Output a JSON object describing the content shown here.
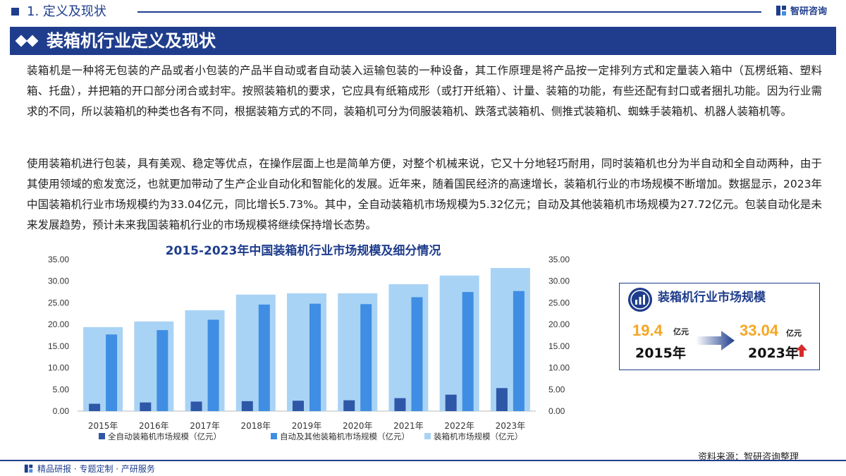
{
  "top": {
    "section_title": "1. 定义及现状",
    "brand": "智研咨询"
  },
  "header": {
    "title": "装箱机行业定义及现状"
  },
  "paragraphs": [
    "装箱机是一种将无包装的产品或者小包装的产品半自动或者自动装入运输包装的一种设备，其工作原理是将产品按一定排列方式和定量装入箱中（瓦楞纸箱、塑料箱、托盘），并把箱的开口部分闭合或封牢。按照装箱机的要求，它应具有纸箱成形（或打开纸箱）、计量、装箱的功能，有些还配有封口或者捆扎功能。因为行业需求的不同，所以装箱机的种类也各有不同，根据装箱方式的不同，装箱机可分为伺服装箱机、跌落式装箱机、侧推式装箱机、蜘蛛手装箱机、机器人装箱机等。",
    "使用装箱机进行包装，具有美观、稳定等优点，在操作层面上也是简单方便，对整个机械来说，它又十分地轻巧耐用，同时装箱机也分为半自动和全自动两种，由于其使用领域的愈发宽泛，也就更加带动了生产企业自动化和智能化的发展。近年来，随着国民经济的高速增长，装箱机行业的市场规模不断增加。数据显示，2023年中国装箱机行业市场规模约为33.04亿元，同比增长5.73%。其中，全自动装箱机市场规模为5.32亿元；自动及其他装箱机市场规模为27.72亿元。包装自动化是未来发展趋势，预计未来我国装箱机行业的市场规模将继续保持增长态势。"
  ],
  "chart_data": {
    "type": "bar",
    "title": "2015-2023年中国装箱机行业市场规模及细分情况",
    "categories": [
      "2015年",
      "2016年",
      "2017年",
      "2018年",
      "2019年",
      "2020年",
      "2021年",
      "2022年",
      "2023年"
    ],
    "series": [
      {
        "name": "全自动装箱机市场规模（亿元）",
        "values": [
          1.7,
          2.0,
          2.2,
          2.3,
          2.4,
          2.5,
          3.0,
          3.8,
          5.32
        ],
        "color": "#2e57a8"
      },
      {
        "name": "自动及其他装箱机市场规模（亿元）",
        "values": [
          17.7,
          18.7,
          21.1,
          24.6,
          24.8,
          24.7,
          26.3,
          27.5,
          27.72
        ],
        "color": "#3f8ee3"
      },
      {
        "name": "装箱机市场规模（亿元）",
        "values": [
          19.4,
          20.7,
          23.3,
          26.9,
          27.2,
          27.2,
          29.3,
          31.3,
          33.04
        ],
        "color": "#a9d3f5"
      }
    ],
    "yticks": [
      "0.00",
      "5.00",
      "10.00",
      "15.00",
      "20.00",
      "25.00",
      "30.00",
      "35.00"
    ],
    "ylim": [
      0,
      35
    ],
    "dual_axis": true,
    "legend_position": "bottom"
  },
  "callout": {
    "title": "装箱机行业市场规模",
    "start_value": "19.4",
    "start_unit": "亿元",
    "start_year": "2015年",
    "end_value": "33.04",
    "end_unit": "亿元",
    "end_year": "2023年",
    "colors": {
      "value": "#f5a623",
      "up_arrow": "#d62b2b"
    },
    "icons": [
      "bar-chart-icon",
      "right-arrow-icon",
      "up-arrow-icon"
    ]
  },
  "source": "资料来源：智研咨询整理",
  "footer": {
    "slogan": "精品研报 · 专题定制 · 产研服务"
  },
  "colors": {
    "brand": "#1f3d8c"
  }
}
